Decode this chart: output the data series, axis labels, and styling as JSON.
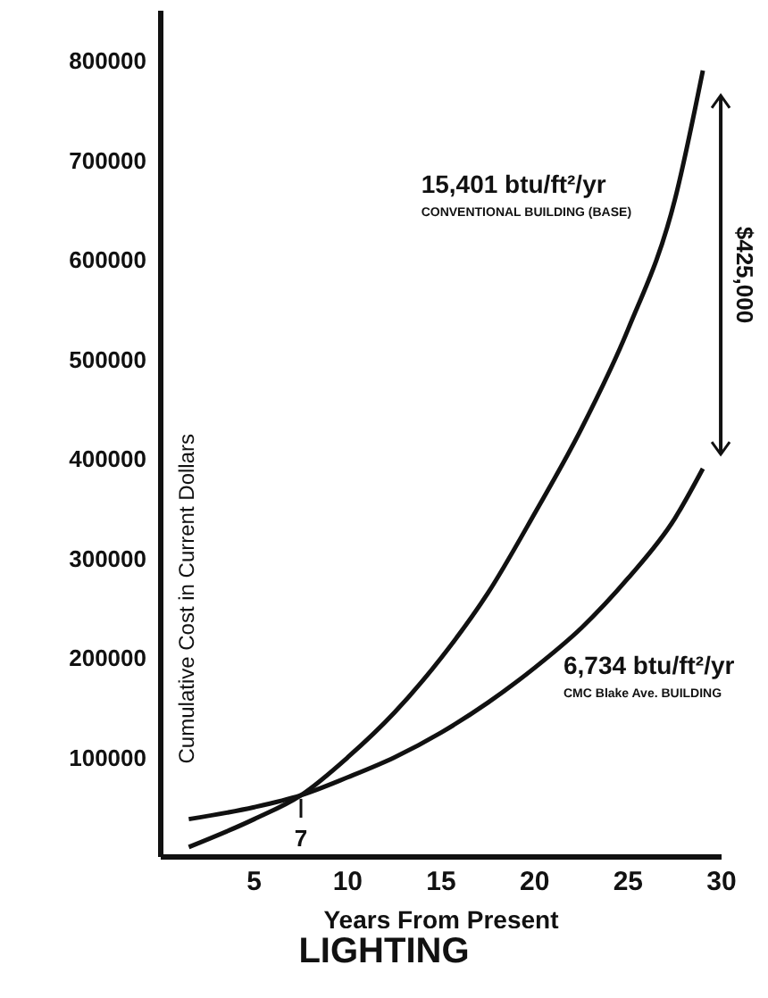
{
  "chart_data": {
    "type": "line",
    "title": "LIGHTING",
    "xlabel": "Years From Present",
    "ylabel": "Cumulative Cost in Current Dollars",
    "x": [
      1.5,
      5,
      7.5,
      10,
      12.5,
      15,
      17.5,
      20,
      22.5,
      25,
      27.5,
      29
    ],
    "series": [
      {
        "name": "15,401 btu/ft²/yr",
        "color": "#111111",
        "values": [
          10000,
          38000,
          62000,
          100000,
          145000,
          200000,
          265000,
          345000,
          430000,
          530000,
          660000,
          790000
        ]
      },
      {
        "name": "6,734 btu/ft²/yr",
        "color": "#111111",
        "values": [
          38000,
          50000,
          62000,
          80000,
          100000,
          125000,
          155000,
          190000,
          230000,
          280000,
          340000,
          390000
        ]
      }
    ],
    "xlim": [
      0,
      30
    ],
    "xticks": [
      5,
      10,
      15,
      20,
      25,
      30
    ],
    "ylim": [
      0,
      850000
    ],
    "yticks": [
      100000,
      200000,
      300000,
      400000,
      500000,
      600000,
      700000,
      800000
    ],
    "grid": false,
    "marker": "none",
    "line_style": "solid",
    "annotations": [
      "CONVENTIONAL BUILDING (BASE)",
      "CMC Blake Ave. BUILDING",
      "$425,000",
      "7"
    ]
  }
}
